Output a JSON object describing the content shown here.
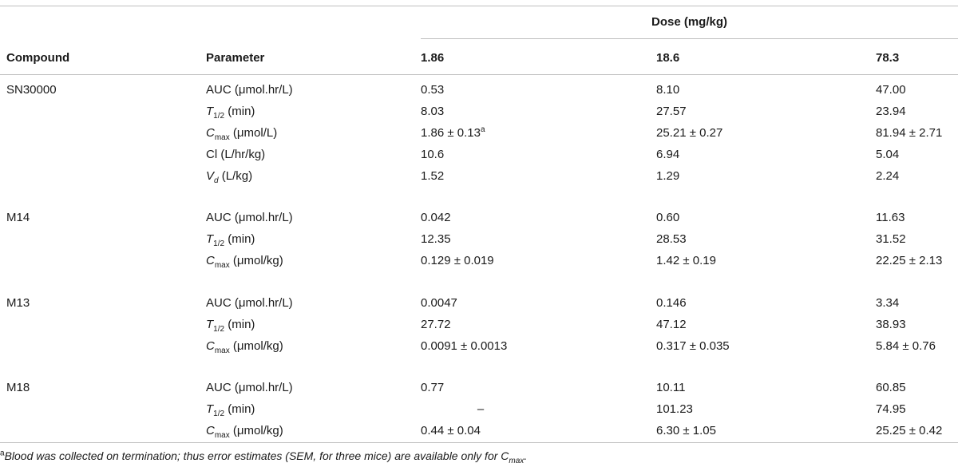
{
  "table": {
    "dose_header": "Dose (mg/kg)",
    "col_compound": "Compound",
    "col_parameter": "Parameter",
    "doses": [
      "1.86",
      "18.6",
      "78.3"
    ],
    "groups": [
      {
        "compound": "SN30000",
        "rows": [
          {
            "p_base": "AUC (μmol.hr/L)",
            "v1": "0.53",
            "v2": "8.10",
            "v3": "47.00"
          },
          {
            "p_sym": "T",
            "p_sub": "1/2",
            "p_rest": " (min)",
            "v1": "8.03",
            "v2": "27.57",
            "v3": "23.94"
          },
          {
            "p_sym": "C",
            "p_sub": "max",
            "p_rest": " (μmol/L)",
            "v1": "1.86 ± 0.13",
            "v1_sup": "a",
            "v2": "25.21 ± 0.27",
            "v3": "81.94 ± 2.71"
          },
          {
            "p_base": "Cl (L/hr/kg)",
            "v1": "10.6",
            "v2": "6.94",
            "v3": "5.04"
          },
          {
            "p_sym": "V",
            "p_sub": "d",
            "p_rest": " (L/kg)",
            "v1": "1.52",
            "v2": "1.29",
            "v3": "2.24"
          }
        ]
      },
      {
        "compound": "M14",
        "rows": [
          {
            "p_base": "AUC (μmol.hr/L)",
            "v1": "0.042",
            "v2": "0.60",
            "v3": "11.63"
          },
          {
            "p_sym": "T",
            "p_sub": "1/2",
            "p_rest": " (min)",
            "v1": "12.35",
            "v2": "28.53",
            "v3": "31.52"
          },
          {
            "p_sym": "C",
            "p_sub": "max",
            "p_rest": " (μmol/kg)",
            "v1": "0.129 ± 0.019",
            "v2": "1.42 ± 0.19",
            "v3": "22.25 ± 2.13"
          }
        ]
      },
      {
        "compound": "M13",
        "rows": [
          {
            "p_base": "AUC (μmol.hr/L)",
            "v1": "0.0047",
            "v2": "0.146",
            "v3": "3.34"
          },
          {
            "p_sym": "T",
            "p_sub": "1/2",
            "p_rest": " (min)",
            "v1": "27.72",
            "v2": "47.12",
            "v3": "38.93"
          },
          {
            "p_sym": "C",
            "p_sub": "max",
            "p_rest": " (μmol/kg)",
            "v1": "0.0091 ± 0.0013",
            "v2": "0.317 ± 0.035",
            "v3": "5.84 ± 0.76"
          }
        ]
      },
      {
        "compound": "M18",
        "rows": [
          {
            "p_base": "AUC (μmol.hr/L)",
            "v1": "0.77",
            "v2": "10.11",
            "v3": "60.85"
          },
          {
            "p_sym": "T",
            "p_sub": "1/2",
            "p_rest": " (min)",
            "v1": "–",
            "v2": "101.23",
            "v3": "74.95"
          },
          {
            "p_sym": "C",
            "p_sub": "max",
            "p_rest": " (μmol/kg)",
            "v1": "0.44 ± 0.04",
            "v2": "6.30 ± 1.05",
            "v3": "25.25 ± 0.42"
          }
        ]
      }
    ]
  },
  "footnote": {
    "mark": "a",
    "text": "Blood was collected on termination; thus error estimates (SEM, for three mice) are available only for ",
    "sym": "C",
    "sub": "max",
    "end": "."
  }
}
